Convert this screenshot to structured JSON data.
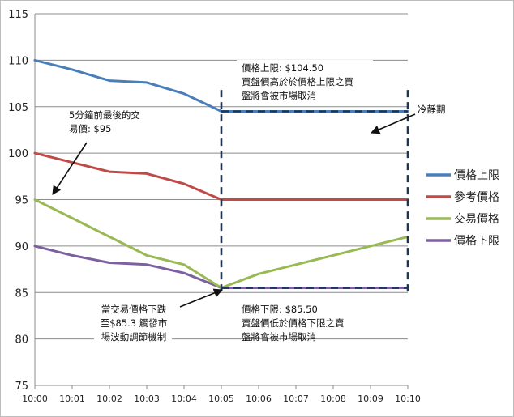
{
  "chart_data": {
    "type": "line",
    "categories": [
      "10:00",
      "10:01",
      "10:02",
      "10:03",
      "10:04",
      "10:05",
      "10:06",
      "10:07",
      "10:08",
      "10:09",
      "10:10"
    ],
    "series": [
      {
        "name": "價格上限",
        "color": "#4a7ebb",
        "values": [
          110,
          109,
          107.8,
          107.6,
          106.4,
          104.5,
          104.5,
          104.5,
          104.5,
          104.5,
          104.5
        ]
      },
      {
        "name": "參考價格",
        "color": "#be4b48",
        "values": [
          100,
          99,
          98,
          97.8,
          96.7,
          95,
          95,
          95,
          95,
          95,
          95
        ]
      },
      {
        "name": "交易價格",
        "color": "#98b954",
        "values": [
          95,
          93,
          91,
          89,
          88,
          85.5,
          87,
          88,
          89,
          90,
          91
        ]
      },
      {
        "name": "價格下限",
        "color": "#7d60a0",
        "values": [
          90,
          89,
          88.2,
          88,
          87.1,
          85.5,
          85.5,
          85.5,
          85.5,
          85.5,
          85.5
        ]
      }
    ],
    "ylim": [
      75,
      115
    ],
    "yticks": [
      75,
      80,
      85,
      90,
      95,
      100,
      105,
      110,
      115
    ],
    "grid": "horizontal",
    "legend": "right",
    "title": "",
    "xlabel": "",
    "ylabel": "",
    "annotations": {
      "upper": [
        "價格上限: $104.50",
        "買盤價高於於價格上限之買",
        "盤將會被市場取消"
      ],
      "lower": [
        "價格下限: $85.50",
        "賣盤價低於價格下限之賣",
        "盤將會被市場取消"
      ],
      "last_trade": [
        "5分鐘前最後的交",
        "易價: $95"
      ],
      "trigger": [
        "當交易價格下跌",
        "至$85.3 觸發市",
        "場波動調節機制"
      ],
      "cooling": [
        "冷靜期"
      ]
    }
  }
}
